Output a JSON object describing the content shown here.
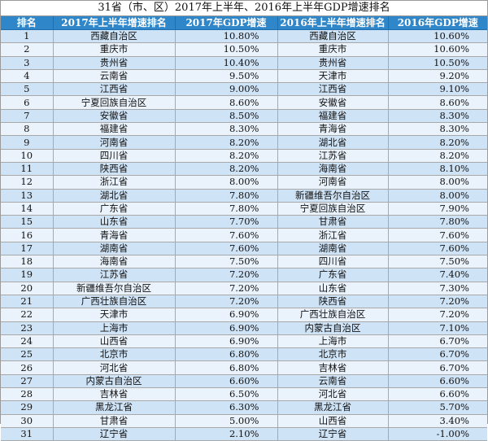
{
  "title": "31省（市、区）2017年上半年、2016年上半年GDP增速排名",
  "headers": [
    "排名",
    "2017年上半年增速排名",
    "2017年GDP增速",
    "2016年上半年增速排名",
    "2016年GDP增速"
  ],
  "rows": [
    [
      "1",
      "西藏自治区",
      "10.80%",
      "西藏自治区",
      "10.60%"
    ],
    [
      "2",
      "重庆市",
      "10.50%",
      "重庆市",
      "10.60%"
    ],
    [
      "3",
      "贵州省",
      "10.40%",
      "贵州省",
      "10.50%"
    ],
    [
      "4",
      "云南省",
      "9.50%",
      "天津市",
      "9.20%"
    ],
    [
      "5",
      "江西省",
      "9.00%",
      "江西省",
      "9.10%"
    ],
    [
      "6",
      "宁夏回族自治区",
      "8.60%",
      "安徽省",
      "8.60%"
    ],
    [
      "7",
      "安徽省",
      "8.50%",
      "福建省",
      "8.30%"
    ],
    [
      "8",
      "福建省",
      "8.30%",
      "青海省",
      "8.30%"
    ],
    [
      "9",
      "河南省",
      "8.20%",
      "湖北省",
      "8.20%"
    ],
    [
      "10",
      "四川省",
      "8.20%",
      "江苏省",
      "8.20%"
    ],
    [
      "11",
      "陕西省",
      "8.20%",
      "海南省",
      "8.10%"
    ],
    [
      "12",
      "浙江省",
      "8.00%",
      "河南省",
      "8.00%"
    ],
    [
      "13",
      "湖北省",
      "7.80%",
      "新疆维吾尔自治区",
      "8.00%"
    ],
    [
      "14",
      "广东省",
      "7.80%",
      "宁夏回族自治区",
      "7.90%"
    ],
    [
      "15",
      "山东省",
      "7.70%",
      "甘肃省",
      "7.80%"
    ],
    [
      "16",
      "青海省",
      "7.60%",
      "浙江省",
      "7.60%"
    ],
    [
      "17",
      "湖南省",
      "7.60%",
      "湖南省",
      "7.60%"
    ],
    [
      "18",
      "海南省",
      "7.50%",
      "四川省",
      "7.50%"
    ],
    [
      "19",
      "江苏省",
      "7.20%",
      "广东省",
      "7.40%"
    ],
    [
      "20",
      "新疆维吾尔自治区",
      "7.20%",
      "山东省",
      "7.30%"
    ],
    [
      "21",
      "广西壮族自治区",
      "7.20%",
      "陕西省",
      "7.20%"
    ],
    [
      "22",
      "天津市",
      "6.90%",
      "广西壮族自治区",
      "7.20%"
    ],
    [
      "23",
      "上海市",
      "6.90%",
      "内蒙古自治区",
      "7.10%"
    ],
    [
      "24",
      "山西省",
      "6.90%",
      "上海市",
      "6.70%"
    ],
    [
      "25",
      "北京市",
      "6.80%",
      "北京市",
      "6.70%"
    ],
    [
      "26",
      "河北省",
      "6.80%",
      "吉林省",
      "6.70%"
    ],
    [
      "27",
      "内蒙古自治区",
      "6.60%",
      "云南省",
      "6.60%"
    ],
    [
      "28",
      "吉林省",
      "6.50%",
      "河北省",
      "6.60%"
    ],
    [
      "29",
      "黑龙江省",
      "6.30%",
      "黑龙江省",
      "5.70%"
    ],
    [
      "30",
      "甘肃省",
      "5.00%",
      "山西省",
      "3.40%"
    ],
    [
      "31",
      "辽宁省",
      "2.10%",
      "辽宁省",
      "-1.00%"
    ]
  ]
}
